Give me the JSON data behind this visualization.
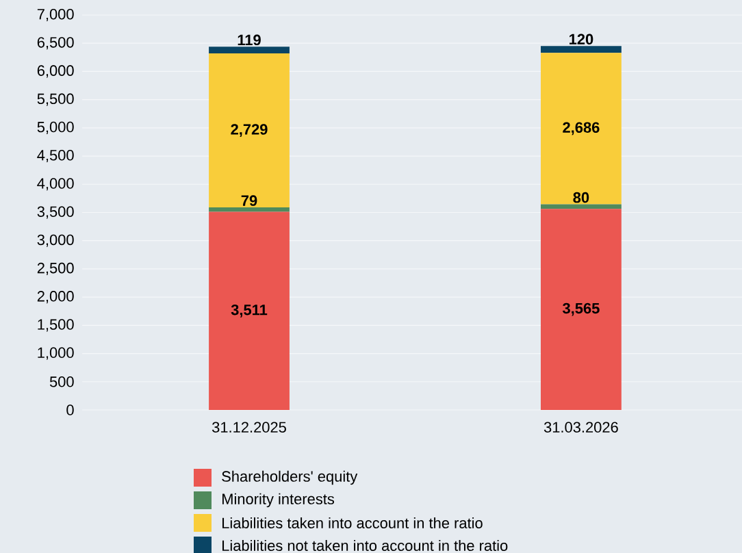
{
  "chart_data": {
    "type": "bar",
    "stacked": true,
    "categories": [
      "31.12.2025",
      "31.03.2026"
    ],
    "series": [
      {
        "name": "Shareholders' equity",
        "color": "#eb5751",
        "values": [
          3511,
          3565
        ],
        "value_labels": [
          "3,511",
          "3,565"
        ]
      },
      {
        "name": "Minority interests",
        "color": "#508a5c",
        "values": [
          79,
          80
        ],
        "value_labels": [
          "79",
          "80"
        ]
      },
      {
        "name": "Liabilities taken into account in the ratio",
        "color": "#f9cd3a",
        "values": [
          2729,
          2686
        ],
        "value_labels": [
          "2,729",
          "2,686"
        ]
      },
      {
        "name": "Liabilities not taken into account in the ratio",
        "color": "#0a4565",
        "values": [
          119,
          120
        ],
        "value_labels": [
          "119",
          "120"
        ]
      }
    ],
    "ylim": [
      0,
      7000
    ],
    "yticks": [
      {
        "value": 0,
        "label": "0"
      },
      {
        "value": 500,
        "label": "500"
      },
      {
        "value": 1000,
        "label": "1,000"
      },
      {
        "value": 1500,
        "label": "1,500"
      },
      {
        "value": 2000,
        "label": "2,000"
      },
      {
        "value": 2500,
        "label": "2,500"
      },
      {
        "value": 3000,
        "label": "3,000"
      },
      {
        "value": 3500,
        "label": "3,500"
      },
      {
        "value": 4000,
        "label": "4,000"
      },
      {
        "value": 4500,
        "label": "4,500"
      },
      {
        "value": 5000,
        "label": "5,000"
      },
      {
        "value": 5500,
        "label": "5,500"
      },
      {
        "value": 6000,
        "label": "6,000"
      },
      {
        "value": 6500,
        "label": "6,500"
      },
      {
        "value": 7000,
        "label": "7,000"
      }
    ],
    "grid": "y",
    "legend": "bottom"
  }
}
